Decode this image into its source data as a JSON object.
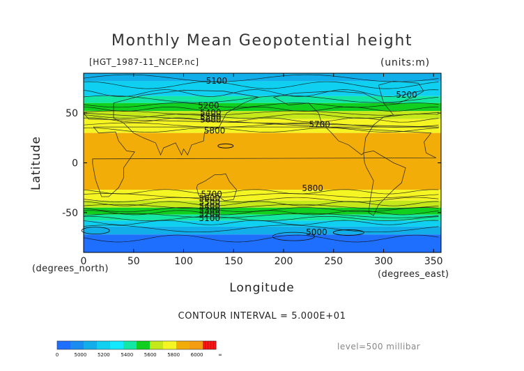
{
  "chart_data": {
    "type": "heatmap",
    "title": "Monthly Mean Geopotential height",
    "file_label": "[HGT_1987-11_NCEP.nc]",
    "units_label": "(units:m)",
    "xlabel": "Longitude",
    "ylabel": "Latitude",
    "x_unit_label": "(degrees_east)",
    "y_unit_label": "(degrees_north)",
    "xlim": [
      0,
      357.5
    ],
    "ylim": [
      -90,
      90
    ],
    "x_ticks": [
      0,
      50,
      100,
      150,
      200,
      250,
      300,
      350
    ],
    "y_ticks": [
      50,
      0,
      -50
    ],
    "contour_interval_text": "CONTOUR INTERVAL = 5.000E+01",
    "level_text": "level=500 millibar",
    "colorbar": {
      "bins": [
        {
          "lo": 0,
          "hi": 5000,
          "color": "#1f6fff"
        },
        {
          "lo": 5000,
          "hi": 5100,
          "color": "#1a8cf0"
        },
        {
          "lo": 5100,
          "hi": 5200,
          "color": "#12aeea"
        },
        {
          "lo": 5200,
          "hi": 5300,
          "color": "#0fd0f0"
        },
        {
          "lo": 5300,
          "hi": 5400,
          "color": "#14e8ff"
        },
        {
          "lo": 5400,
          "hi": 5500,
          "color": "#14e7a4"
        },
        {
          "lo": 5500,
          "hi": 5600,
          "color": "#10cf1e"
        },
        {
          "lo": 5600,
          "hi": 5700,
          "color": "#c5e81a"
        },
        {
          "lo": 5700,
          "hi": 5800,
          "color": "#f5f523"
        },
        {
          "lo": 5800,
          "hi": 5900,
          "color": "#f3ad08"
        },
        {
          "lo": 5900,
          "hi": 6000,
          "color": "#f59d12"
        },
        {
          "lo": 6000,
          "hi": 99999,
          "color": "#fb1515"
        }
      ],
      "tick_labels": [
        "0",
        "5000",
        "5200",
        "5400",
        "5600",
        "5800",
        "6000",
        "∞"
      ]
    },
    "lat_bands": [
      {
        "lat_top": 90,
        "lat_bottom": 82,
        "value": 5150
      },
      {
        "lat_top": 82,
        "lat_bottom": 67,
        "value": 5250
      },
      {
        "lat_top": 67,
        "lat_bottom": 60,
        "value": 5450
      },
      {
        "lat_top": 60,
        "lat_bottom": 52,
        "value": 5550
      },
      {
        "lat_top": 52,
        "lat_bottom": 44,
        "value": 5650
      },
      {
        "lat_top": 44,
        "lat_bottom": 30,
        "value": 5750
      },
      {
        "lat_top": 30,
        "lat_bottom": -27,
        "value": 5850
      },
      {
        "lat_top": -27,
        "lat_bottom": -38,
        "value": 5750
      },
      {
        "lat_top": -38,
        "lat_bottom": -45,
        "value": 5650
      },
      {
        "lat_top": -45,
        "lat_bottom": -52,
        "value": 5550
      },
      {
        "lat_top": -52,
        "lat_bottom": -58,
        "value": 5450
      },
      {
        "lat_top": -58,
        "lat_bottom": -64,
        "value": 5250
      },
      {
        "lat_top": -64,
        "lat_bottom": -72,
        "value": 5150
      },
      {
        "lat_top": -72,
        "lat_bottom": -90,
        "value": 4950
      }
    ],
    "contour_labels": [
      {
        "text": "5100",
        "lon": 133,
        "lat": 82
      },
      {
        "text": "5200",
        "lon": 125,
        "lat": 57
      },
      {
        "text": "5200",
        "lon": 323,
        "lat": 68
      },
      {
        "text": "5400",
        "lon": 127,
        "lat": 50
      },
      {
        "text": "5500",
        "lon": 127,
        "lat": 46
      },
      {
        "text": "5600",
        "lon": 127,
        "lat": 43
      },
      {
        "text": "5700",
        "lon": 236,
        "lat": 38
      },
      {
        "text": "5800",
        "lon": 131,
        "lat": 32
      },
      {
        "text": "5800",
        "lon": 229,
        "lat": -26
      },
      {
        "text": "5700",
        "lon": 128,
        "lat": -32
      },
      {
        "text": "5600",
        "lon": 126,
        "lat": -36
      },
      {
        "text": "5500",
        "lon": 126,
        "lat": -40
      },
      {
        "text": "5400",
        "lon": 126,
        "lat": -44
      },
      {
        "text": "5300",
        "lon": 126,
        "lat": -48
      },
      {
        "text": "5200",
        "lon": 126,
        "lat": -52
      },
      {
        "text": "5100",
        "lon": 126,
        "lat": -56
      },
      {
        "text": "5000",
        "lon": 233,
        "lat": -70
      }
    ]
  }
}
